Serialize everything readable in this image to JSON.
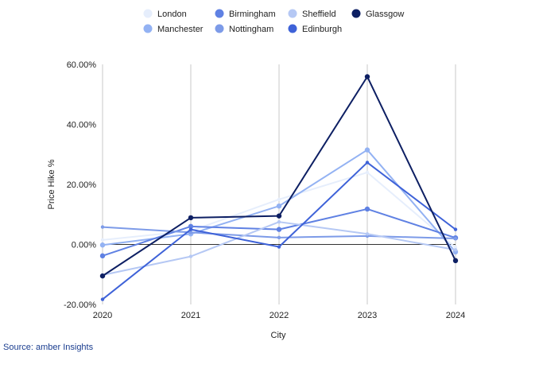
{
  "chart_data": {
    "type": "line",
    "title": "",
    "xlabel": "City",
    "ylabel": "Price Hike %",
    "x": [
      "2020",
      "2021",
      "2022",
      "2023",
      "2024"
    ],
    "ylim": [
      -20,
      60
    ],
    "yticks": [
      "-20.00%",
      "0.00%",
      "20.00%",
      "40.00%",
      "60.00%"
    ],
    "ytick_values": [
      -20,
      0,
      20,
      40,
      60
    ],
    "grid": "vertical lines at each year",
    "legend_position": "top",
    "series": [
      {
        "name": "London",
        "color": "#e6eefc",
        "marker": false,
        "values": [
          1.5,
          4.5,
          15,
          24,
          -1
        ]
      },
      {
        "name": "Manchester",
        "color": "#93b2f3",
        "marker": true,
        "values": [
          -0.2,
          3.5,
          12.8,
          31.5,
          -2.5
        ]
      },
      {
        "name": "Birmingham",
        "color": "#5f81e3",
        "marker": true,
        "values": [
          -3.8,
          6,
          5,
          11.8,
          2.2
        ]
      },
      {
        "name": "Nottingham",
        "color": "#7d9be8",
        "marker": false,
        "values": [
          5.8,
          4,
          2.3,
          2.8,
          2
        ]
      },
      {
        "name": "Sheffield",
        "color": "#b5c8f4",
        "marker": false,
        "values": [
          -10.2,
          -4,
          7.5,
          3.5,
          -1.8
        ]
      },
      {
        "name": "Edinburgh",
        "color": "#3e62d8",
        "marker": false,
        "values": [
          -18.3,
          5,
          -0.8,
          27.3,
          5
        ]
      },
      {
        "name": "Glassgow",
        "color": "#0d1f63",
        "marker": true,
        "values": [
          -10.5,
          8.9,
          9.5,
          55.9,
          -5.4
        ]
      }
    ]
  },
  "source": "Source: amber Insights"
}
